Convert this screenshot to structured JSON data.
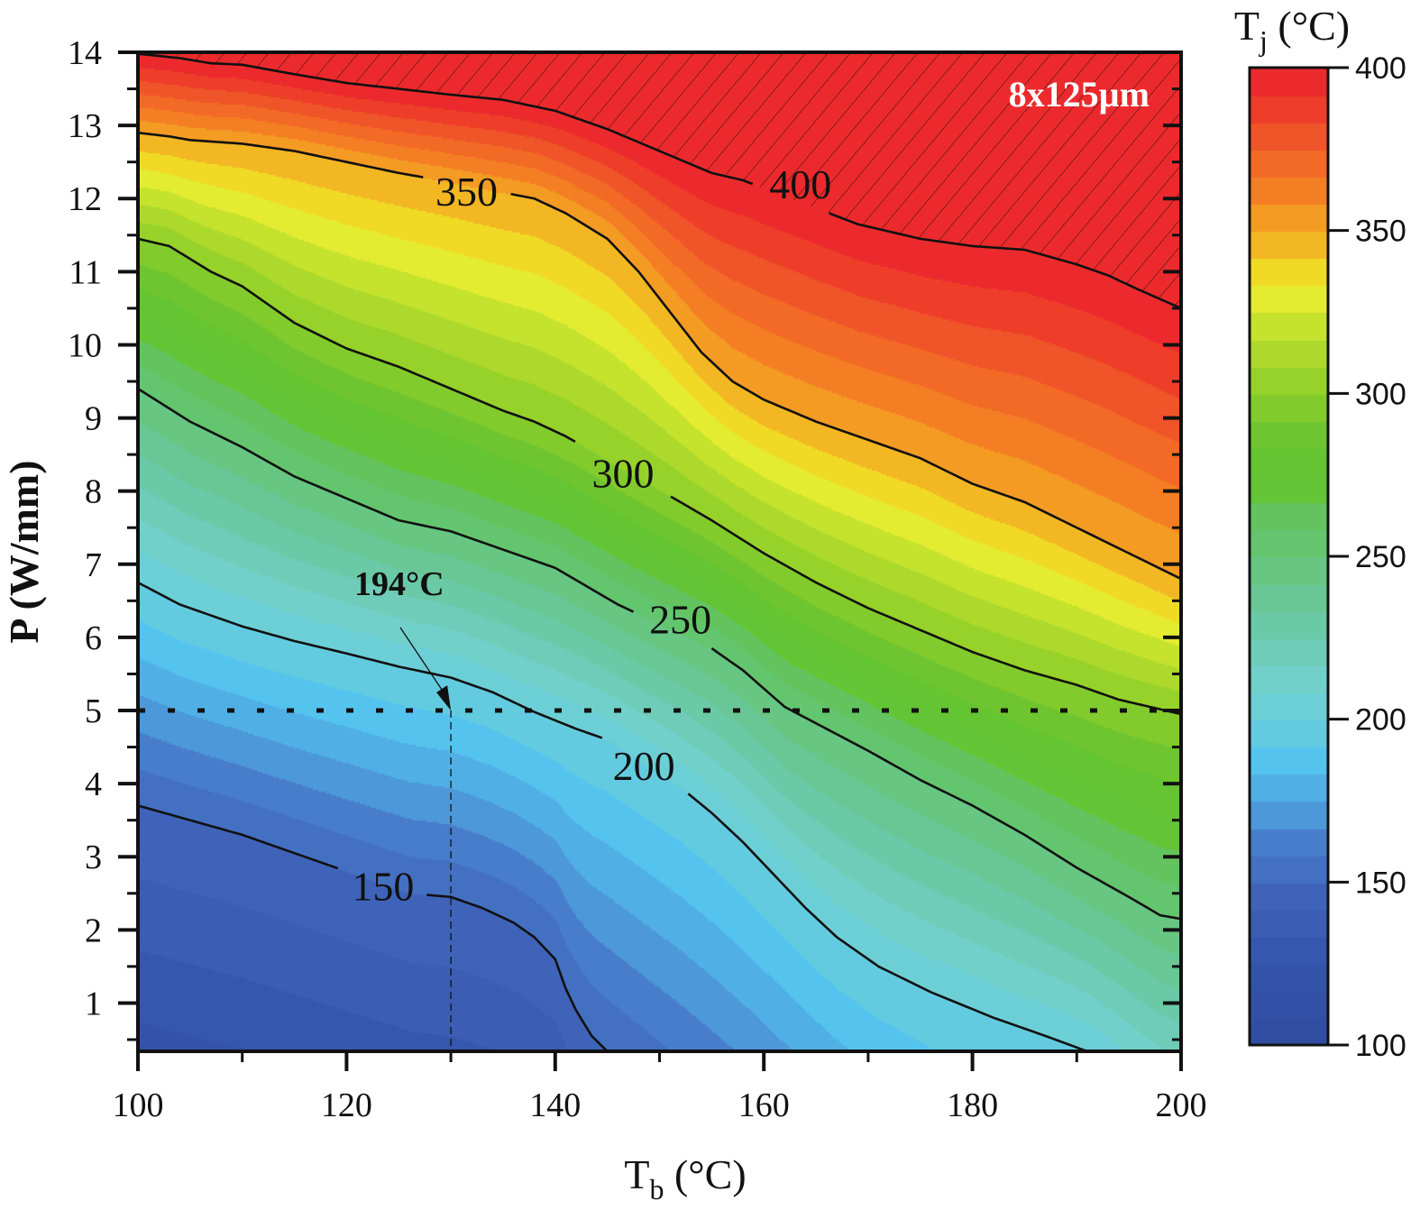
{
  "chart_data": {
    "type": "contour",
    "title": "",
    "inset_label": "8x125µm",
    "xlabel": {
      "main": "T",
      "sub": "b",
      "unit": " (°C)"
    },
    "ylabel": "P (W/mm)",
    "xlim": [
      100,
      200
    ],
    "ylim": [
      0.34,
      14
    ],
    "xticks": [
      100,
      120,
      140,
      160,
      180,
      200
    ],
    "xtick_labels": [
      "100",
      "120",
      "140",
      "160",
      "180",
      "200"
    ],
    "x_minor_step": 10,
    "yticks": [
      1,
      2,
      3,
      4,
      5,
      6,
      7,
      8,
      9,
      10,
      11,
      12,
      13,
      14
    ],
    "ytick_labels": [
      "1",
      "2",
      "3",
      "4",
      "5",
      "6",
      "7",
      "8",
      "9",
      "10",
      "11",
      "12",
      "13",
      "14"
    ],
    "y_minor_step": 0.5,
    "colorbar": {
      "title": {
        "main": "T",
        "sub": "j",
        "unit": " (°C)"
      },
      "range": [
        100,
        400
      ],
      "ticks": [
        100,
        150,
        200,
        250,
        300,
        350,
        400
      ],
      "tick_labels": [
        "100",
        "150",
        "200",
        "250",
        "300",
        "350",
        "400"
      ],
      "levels": 36,
      "colors": [
        "#324ea3",
        "#3250a6",
        "#3353a9",
        "#3657ae",
        "#3b5db3",
        "#3f63b8",
        "#4470c2",
        "#477dca",
        "#4d98d9",
        "#50b0e6",
        "#54c4ef",
        "#62cbe0",
        "#6ccfd6",
        "#72d0ca",
        "#6fccb8",
        "#6ac9a6",
        "#68c795",
        "#66c682",
        "#64c56f",
        "#63c45f",
        "#63c435",
        "#64c432",
        "#6ec52f",
        "#82cb2c",
        "#96d22a",
        "#acd92b",
        "#c5e22c",
        "#e4ec31",
        "#f0da26",
        "#f2b722",
        "#f49b23",
        "#f47e24",
        "#f26a26",
        "#ef5528",
        "#ee3e2a",
        "#ec2a2d"
      ]
    },
    "contours": [
      {
        "level": 150,
        "label": "150",
        "label_at": [
          123.5,
          2.6
        ],
        "points": [
          [
            100,
            3.7
          ],
          [
            105,
            3.5
          ],
          [
            110,
            3.3
          ],
          [
            115,
            3.05
          ],
          [
            120,
            2.8
          ],
          [
            126,
            2.5
          ],
          [
            130,
            2.45
          ],
          [
            133,
            2.3
          ],
          [
            136,
            2.1
          ],
          [
            138,
            1.9
          ],
          [
            140,
            1.6
          ],
          [
            141,
            1.2
          ],
          [
            142,
            0.9
          ],
          [
            143.5,
            0.55
          ],
          [
            145,
            0.34
          ]
        ]
      },
      {
        "level": 200,
        "label": "200",
        "label_at": [
          148.5,
          4.25
        ],
        "points": [
          [
            100,
            6.75
          ],
          [
            104,
            6.45
          ],
          [
            110,
            6.15
          ],
          [
            115,
            5.95
          ],
          [
            120,
            5.78
          ],
          [
            125,
            5.6
          ],
          [
            130,
            5.45
          ],
          [
            134,
            5.25
          ],
          [
            138,
            4.98
          ],
          [
            142,
            4.75
          ],
          [
            145,
            4.6
          ],
          [
            152,
            3.95
          ],
          [
            155,
            3.6
          ],
          [
            158,
            3.2
          ],
          [
            161,
            2.75
          ],
          [
            164,
            2.3
          ],
          [
            167,
            1.9
          ],
          [
            171,
            1.5
          ],
          [
            176,
            1.15
          ],
          [
            182,
            0.8
          ],
          [
            187,
            0.55
          ],
          [
            191,
            0.34
          ]
        ]
      },
      {
        "level": 250,
        "label": "250",
        "label_at": [
          152,
          6.25
        ],
        "points": [
          [
            100,
            9.4
          ],
          [
            105,
            8.95
          ],
          [
            110,
            8.6
          ],
          [
            115,
            8.2
          ],
          [
            120,
            7.9
          ],
          [
            125,
            7.6
          ],
          [
            130,
            7.45
          ],
          [
            135,
            7.2
          ],
          [
            140,
            6.95
          ],
          [
            143,
            6.7
          ],
          [
            146,
            6.45
          ],
          [
            155,
            5.85
          ],
          [
            158,
            5.55
          ],
          [
            162,
            5.05
          ],
          [
            166,
            4.75
          ],
          [
            170,
            4.45
          ],
          [
            175,
            4.05
          ],
          [
            180,
            3.7
          ],
          [
            185,
            3.3
          ],
          [
            190,
            2.85
          ],
          [
            195,
            2.45
          ],
          [
            198,
            2.2
          ],
          [
            200,
            2.15
          ]
        ]
      },
      {
        "level": 300,
        "label": "300",
        "label_at": [
          146.5,
          8.25
        ],
        "points": [
          [
            100,
            11.45
          ],
          [
            103,
            11.35
          ],
          [
            107,
            11.0
          ],
          [
            110,
            10.8
          ],
          [
            115,
            10.3
          ],
          [
            120,
            9.95
          ],
          [
            125,
            9.7
          ],
          [
            130,
            9.4
          ],
          [
            135,
            9.1
          ],
          [
            138,
            8.95
          ],
          [
            141,
            8.75
          ],
          [
            152,
            7.85
          ],
          [
            155,
            7.6
          ],
          [
            160,
            7.15
          ],
          [
            165,
            6.75
          ],
          [
            170,
            6.4
          ],
          [
            175,
            6.1
          ],
          [
            180,
            5.8
          ],
          [
            185,
            5.55
          ],
          [
            190,
            5.35
          ],
          [
            194,
            5.15
          ],
          [
            197,
            5.05
          ],
          [
            200,
            4.95
          ]
        ]
      },
      {
        "level": 350,
        "label": "350",
        "label_at": [
          131.5,
          12.1
        ],
        "points": [
          [
            100,
            12.9
          ],
          [
            103,
            12.85
          ],
          [
            105,
            12.8
          ],
          [
            110,
            12.75
          ],
          [
            115,
            12.65
          ],
          [
            120,
            12.5
          ],
          [
            125,
            12.35
          ],
          [
            129,
            12.25
          ],
          [
            138,
            12.0
          ],
          [
            141,
            11.8
          ],
          [
            145,
            11.45
          ],
          [
            148,
            11.0
          ],
          [
            151,
            10.45
          ],
          [
            154,
            9.9
          ],
          [
            157,
            9.5
          ],
          [
            160,
            9.25
          ],
          [
            165,
            8.95
          ],
          [
            170,
            8.7
          ],
          [
            175,
            8.45
          ],
          [
            180,
            8.1
          ],
          [
            185,
            7.85
          ],
          [
            190,
            7.5
          ],
          [
            195,
            7.15
          ],
          [
            200,
            6.8
          ]
        ]
      },
      {
        "level": 400,
        "label": "400",
        "label_at": [
          163.5,
          12.2
        ],
        "points": [
          [
            100,
            13.98
          ],
          [
            104,
            13.92
          ],
          [
            107,
            13.85
          ],
          [
            110,
            13.83
          ],
          [
            115,
            13.7
          ],
          [
            120,
            13.58
          ],
          [
            125,
            13.5
          ],
          [
            130,
            13.42
          ],
          [
            135,
            13.35
          ],
          [
            140,
            13.2
          ],
          [
            145,
            12.95
          ],
          [
            150,
            12.65
          ],
          [
            155,
            12.35
          ],
          [
            158,
            12.25
          ],
          [
            169,
            11.65
          ],
          [
            175,
            11.45
          ],
          [
            180,
            11.35
          ],
          [
            185,
            11.3
          ],
          [
            190,
            11.1
          ],
          [
            193,
            10.95
          ],
          [
            196,
            10.75
          ],
          [
            200,
            10.5
          ]
        ]
      }
    ],
    "hatched_region": "T_j > 400 °C",
    "reference_line": {
      "P": 5,
      "style": "dotted"
    },
    "annotation": {
      "text": "194°C",
      "points_to": [
        130,
        5.0
      ],
      "drop_line_x": 130
    }
  }
}
